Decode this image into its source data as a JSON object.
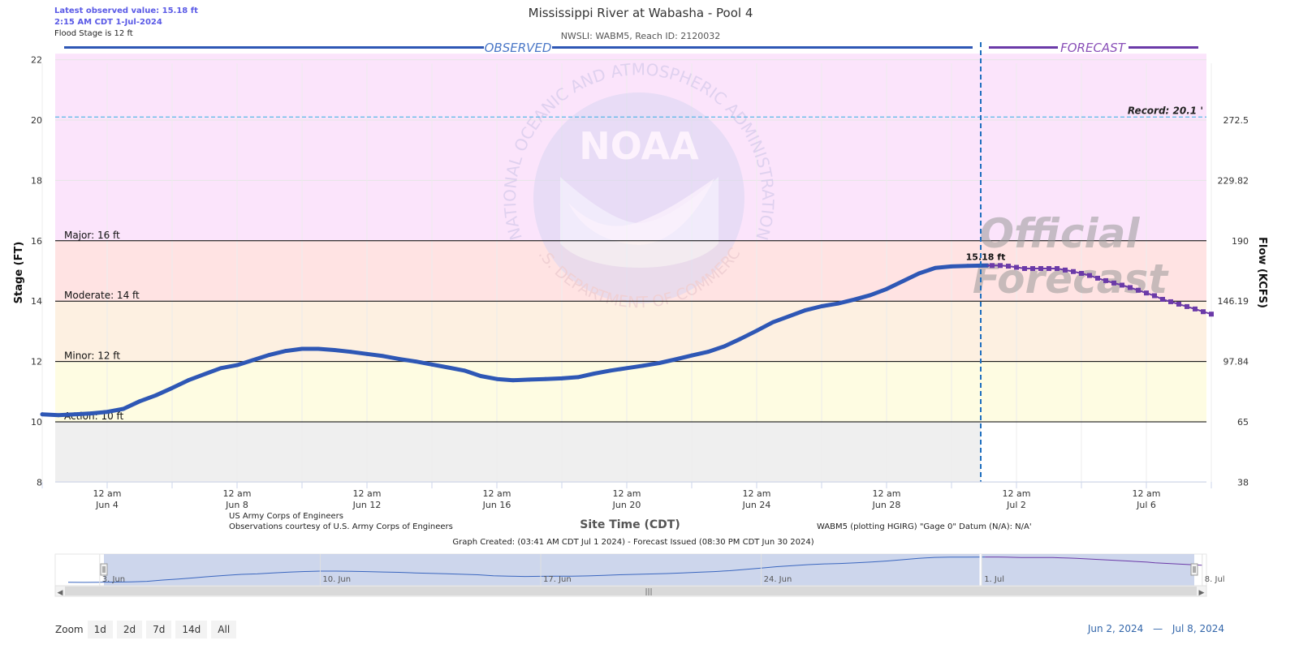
{
  "header": {
    "latest_label": "Latest observed value: 15.18 ft",
    "latest_time": "2:15 AM CDT 1-Jul-2024",
    "flood_stage": "Flood Stage is 12 ft"
  },
  "zoom": {
    "label": "Zoom",
    "buttons": [
      "1d",
      "2d",
      "7d",
      "14d",
      "All"
    ]
  },
  "range": {
    "from": "Jun 2, 2024",
    "sep": "—",
    "to": "Jul 8, 2024"
  },
  "colors": {
    "observed": "#2e57b5",
    "forecast": "#6b3aa8",
    "record_line": "#55b8e6",
    "major_band": "#fbe4fb",
    "moderate_band": "#ffe3e3",
    "minor_band": "#fdf0e1",
    "action_band": "#fefce2",
    "normal_band": "#efefef"
  },
  "chart_data": {
    "type": "line",
    "title": "Mississippi River at Wabasha - Pool 4",
    "subtitle": "NWSLI: WABM5, Reach ID: 2120032",
    "xlabel": "Site Time (CDT)",
    "ylabel": "Stage (FT)",
    "y2label": "Flow (KCFS)",
    "ylim": [
      7.5,
      22.2
    ],
    "y_ticks": [
      8,
      10,
      12,
      14,
      16,
      18,
      20,
      22
    ],
    "y2_ticks": [
      {
        "stage": 8,
        "label": "38"
      },
      {
        "stage": 10,
        "label": "65"
      },
      {
        "stage": 12,
        "label": "97.84"
      },
      {
        "stage": 14,
        "label": "146.19"
      },
      {
        "stage": 16,
        "label": "190"
      },
      {
        "stage": 18,
        "label": "229.82"
      },
      {
        "stage": 20,
        "label": "272.5"
      }
    ],
    "x_ticks": [
      {
        "day": 4,
        "line1": "12 am",
        "line2": "Jun 4"
      },
      {
        "day": 8,
        "line1": "12 am",
        "line2": "Jun 8"
      },
      {
        "day": 12,
        "line1": "12 am",
        "line2": "Jun 12"
      },
      {
        "day": 16,
        "line1": "12 am",
        "line2": "Jun 16"
      },
      {
        "day": 20,
        "line1": "12 am",
        "line2": "Jun 20"
      },
      {
        "day": 24,
        "line1": "12 am",
        "line2": "Jun 24"
      },
      {
        "day": 28,
        "line1": "12 am",
        "line2": "Jun 28"
      },
      {
        "day": 32,
        "line1": "12 am",
        "line2": "Jul 2"
      },
      {
        "day": 36,
        "line1": "12 am",
        "line2": "Jul 6"
      }
    ],
    "observed_label": "OBSERVED",
    "forecast_label": "FORECAST",
    "official_forecast": [
      "Official",
      "Forecast"
    ],
    "thresholds": [
      {
        "name": "Major",
        "label": "Major: 16 ft",
        "value": 16
      },
      {
        "name": "Moderate",
        "label": "Moderate: 14 ft",
        "value": 14
      },
      {
        "name": "Minor",
        "label": "Minor: 12 ft",
        "value": 12
      },
      {
        "name": "Action",
        "label": "Action: 10 ft",
        "value": 10
      }
    ],
    "record": {
      "label": "Record: 20.1 '",
      "value": 20.1
    },
    "latest_point": {
      "label": "15.18 ft",
      "day": 31.1,
      "value": 15.18
    },
    "observed_series": {
      "x_days": [
        2.0,
        2.5,
        3.0,
        3.5,
        4.0,
        4.5,
        5.0,
        5.5,
        6.0,
        6.5,
        7.0,
        7.5,
        8.0,
        8.5,
        9.0,
        9.5,
        10.0,
        10.5,
        11.0,
        11.5,
        12.0,
        12.5,
        13.0,
        13.5,
        14.0,
        14.5,
        15.0,
        15.5,
        16.0,
        16.5,
        17.0,
        17.5,
        18.0,
        18.5,
        19.0,
        19.5,
        20.0,
        20.5,
        21.0,
        21.5,
        22.0,
        22.5,
        23.0,
        23.5,
        24.0,
        24.5,
        25.0,
        25.5,
        26.0,
        26.5,
        27.0,
        27.5,
        28.0,
        28.5,
        29.0,
        29.5,
        30.0,
        30.5,
        31.1
      ],
      "values": [
        10.25,
        10.22,
        10.25,
        10.28,
        10.33,
        10.43,
        10.68,
        10.88,
        11.12,
        11.38,
        11.58,
        11.78,
        11.88,
        12.05,
        12.22,
        12.35,
        12.42,
        12.42,
        12.38,
        12.32,
        12.25,
        12.18,
        12.08,
        12.0,
        11.9,
        11.8,
        11.7,
        11.52,
        11.42,
        11.38,
        11.4,
        11.42,
        11.44,
        11.48,
        11.6,
        11.7,
        11.78,
        11.86,
        11.95,
        12.07,
        12.2,
        12.32,
        12.5,
        12.75,
        13.02,
        13.3,
        13.5,
        13.7,
        13.83,
        13.92,
        14.05,
        14.2,
        14.4,
        14.66,
        14.92,
        15.1,
        15.15,
        15.17,
        15.18
      ]
    },
    "forecast_series": {
      "x_days": [
        31.25,
        31.5,
        31.75,
        32.0,
        32.25,
        32.5,
        32.75,
        33.0,
        33.25,
        33.5,
        33.75,
        34.0,
        34.25,
        34.5,
        34.75,
        35.0,
        35.25,
        35.5,
        35.75,
        36.0,
        36.25,
        36.5,
        36.75,
        37.0,
        37.25,
        37.5,
        37.75,
        38.0
      ],
      "values": [
        15.18,
        15.18,
        15.16,
        15.12,
        15.08,
        15.08,
        15.08,
        15.08,
        15.08,
        15.03,
        14.98,
        14.92,
        14.85,
        14.76,
        14.68,
        14.6,
        14.53,
        14.45,
        14.36,
        14.27,
        14.18,
        14.06,
        13.98,
        13.9,
        13.82,
        13.74,
        13.65,
        13.57
      ]
    },
    "footer_left": [
      "US Army Corps of Engineers",
      "Observations courtesy of U.S. Army Corps of Engineers"
    ],
    "footer_right": "WABM5 (plotting HGIRG) \"Gage 0\" Datum (N/A): N/A'",
    "created_line": "Graph Created: (03:41 AM CDT Jul 1 2024) - Forecast Issued (08:30 PM CDT Jun 30 2024)",
    "watermark": {
      "logo_text": "NOAA",
      "ring_top": "NATIONAL OCEANIC AND ATMOSPHERIC ADMINISTRATION",
      "ring_bottom": "U.S. DEPARTMENT OF COMMERCE"
    },
    "navigator": {
      "labels": [
        {
          "day": 3,
          "text": "3. Jun"
        },
        {
          "day": 10,
          "text": "10. Jun"
        },
        {
          "day": 17,
          "text": "17. Jun"
        },
        {
          "day": 24,
          "text": "24. Jun"
        },
        {
          "day": 31,
          "text": "1. Jul"
        },
        {
          "day": 38,
          "text": "8. Jul"
        }
      ]
    }
  }
}
